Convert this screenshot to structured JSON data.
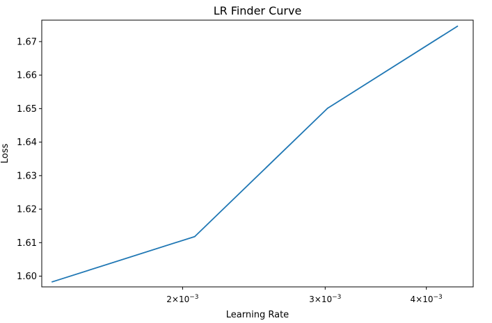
{
  "chart_data": {
    "type": "line",
    "title": "LR Finder Curve",
    "xlabel": "Learning Rate",
    "ylabel": "Loss",
    "xscale": "log",
    "xlim": [
      0.00134,
      0.00457
    ],
    "ylim": [
      1.5968,
      1.6764
    ],
    "grid": false,
    "series": [
      {
        "color": "#1f77b4",
        "x": [
          0.00138,
          0.00207,
          0.00302,
          0.00437
        ],
        "y": [
          1.5983,
          1.6118,
          1.6501,
          1.6746
        ]
      }
    ],
    "yticks": [
      {
        "value": 1.6,
        "label": "1.60"
      },
      {
        "value": 1.61,
        "label": "1.61"
      },
      {
        "value": 1.62,
        "label": "1.62"
      },
      {
        "value": 1.63,
        "label": "1.63"
      },
      {
        "value": 1.64,
        "label": "1.64"
      },
      {
        "value": 1.65,
        "label": "1.65"
      },
      {
        "value": 1.66,
        "label": "1.66"
      },
      {
        "value": 1.67,
        "label": "1.67"
      }
    ],
    "xticks": [
      {
        "value": 0.002,
        "mantissa": "2",
        "base": "10",
        "exp": "−3"
      },
      {
        "value": 0.003,
        "mantissa": "3",
        "base": "10",
        "exp": "−3"
      },
      {
        "value": 0.004,
        "mantissa": "4",
        "base": "10",
        "exp": "−3"
      }
    ]
  }
}
